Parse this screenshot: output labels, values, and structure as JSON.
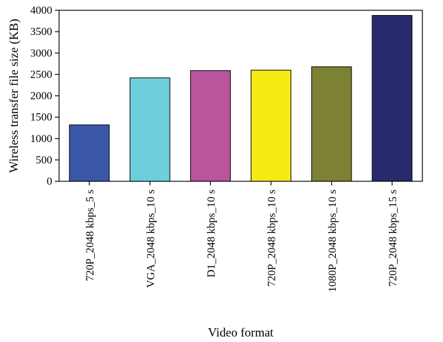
{
  "chart_data": {
    "type": "bar",
    "title": "",
    "xlabel": "Video format",
    "ylabel": "Wireless transfer file size (KB)",
    "categories": [
      "720P_2048 kbps_5 s",
      "VGA_2048 kbps_10 s",
      "D1_2048 kbps_10 s",
      "720P_2048 kbps_10 s",
      "1080P_2048 kbps_10 s",
      "720P_2048 kbps_15 s"
    ],
    "values": [
      1320,
      2420,
      2590,
      2600,
      2680,
      3880
    ],
    "colors": [
      "#3a57a7",
      "#6dcfdc",
      "#b9549d",
      "#f5ea14",
      "#7c8134",
      "#272a6b"
    ],
    "ylim": [
      0,
      4000
    ],
    "yticks": [
      0,
      500,
      1000,
      1500,
      2000,
      2500,
      3000,
      3500,
      4000
    ],
    "grid": false,
    "legend": "none"
  }
}
